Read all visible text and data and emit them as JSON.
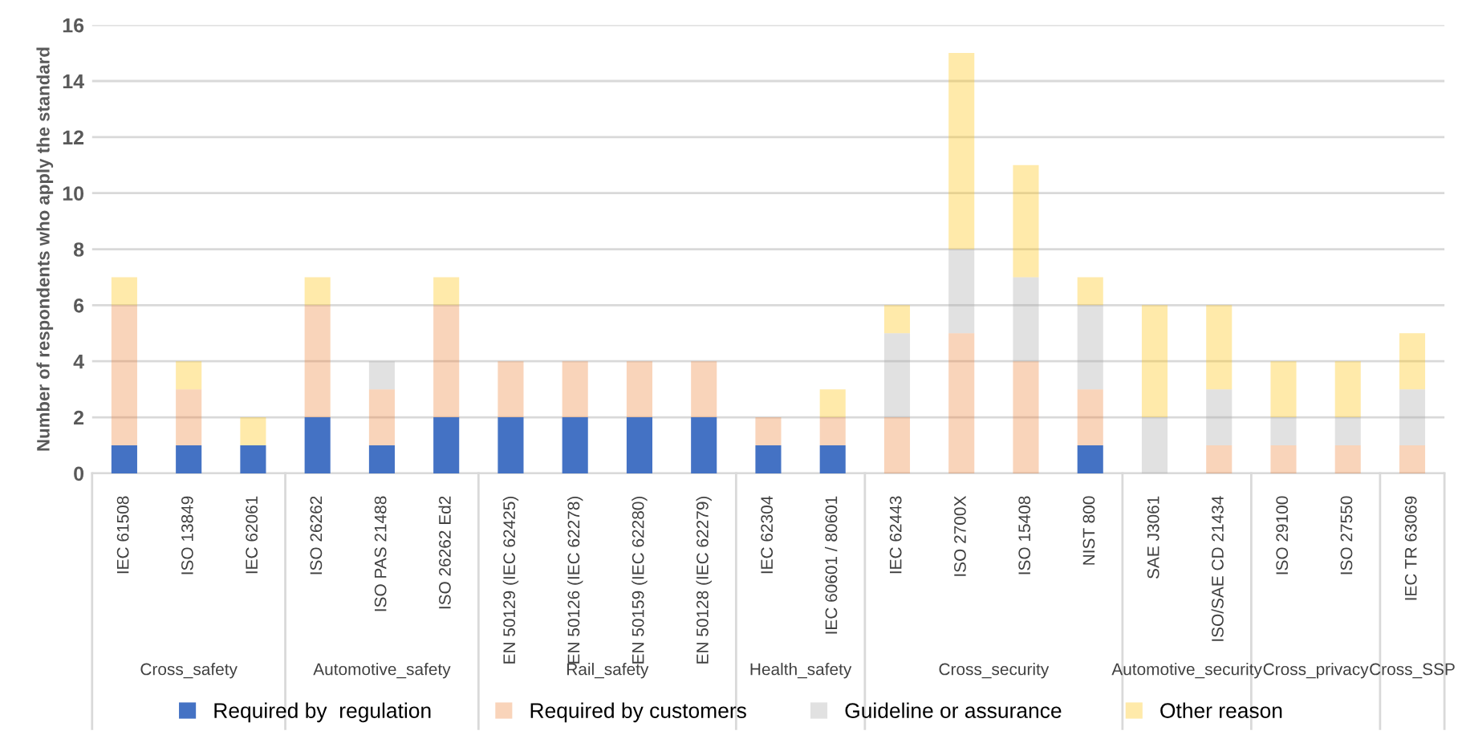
{
  "chart_data": {
    "type": "bar",
    "stacked": true,
    "ylabel": "Number of respondents who apply the standard",
    "categories": [
      "IEC 61508",
      "ISO 13849",
      "IEC 62061",
      "ISO 26262",
      "ISO PAS 21488",
      "ISO 26262 Ed2",
      "EN 50129 (IEC 62425)",
      "EN 50126 (IEC 62278)",
      "EN 50159 (IEC 62280)",
      "EN 50128 (IEC 62279)",
      "IEC 62304",
      "IEC 60601 / 80601",
      "IEC 62443",
      "ISO 2700X",
      "ISO 15408",
      "NIST 800",
      "SAE J3061",
      "ISO/SAE CD 21434",
      "ISO 29100",
      "ISO 27550",
      "IEC TR 63069"
    ],
    "series": [
      {
        "name": "Required by  regulation",
        "color": "#4472c4",
        "values": [
          1,
          1,
          1,
          2,
          1,
          2,
          2,
          2,
          2,
          2,
          1,
          1,
          0,
          0,
          0,
          1,
          0,
          0,
          0,
          0,
          0
        ]
      },
      {
        "name": "Required by customers",
        "color": "#ed7d31",
        "values": [
          5,
          2,
          0,
          4,
          2,
          4,
          2,
          2,
          2,
          2,
          1,
          1,
          2,
          5,
          4,
          2,
          0,
          1,
          1,
          1,
          1
        ]
      },
      {
        "name": "Guideline or assurance",
        "color": "#a5a5a5",
        "values": [
          0,
          0,
          0,
          0,
          1,
          0,
          0,
          0,
          0,
          0,
          0,
          0,
          3,
          3,
          3,
          3,
          2,
          2,
          1,
          1,
          2
        ]
      },
      {
        "name": "Other reason",
        "color": "#ffc000",
        "values": [
          1,
          1,
          1,
          1,
          0,
          1,
          0,
          0,
          0,
          0,
          0,
          1,
          1,
          7,
          4,
          1,
          4,
          3,
          2,
          2,
          2
        ]
      }
    ],
    "annotations": [
      "Cross_safety",
      "Automotive_safety",
      "Rail_safety",
      "Health_safety",
      "Cross_security",
      "Automotive_security",
      "Cross_privacy",
      "Cross_SSP"
    ],
    "ylim": [
      0,
      16
    ],
    "yticks": [
      0,
      2,
      4,
      6,
      8,
      10,
      12,
      14,
      16
    ],
    "grid": "y",
    "legend": "bottom"
  }
}
